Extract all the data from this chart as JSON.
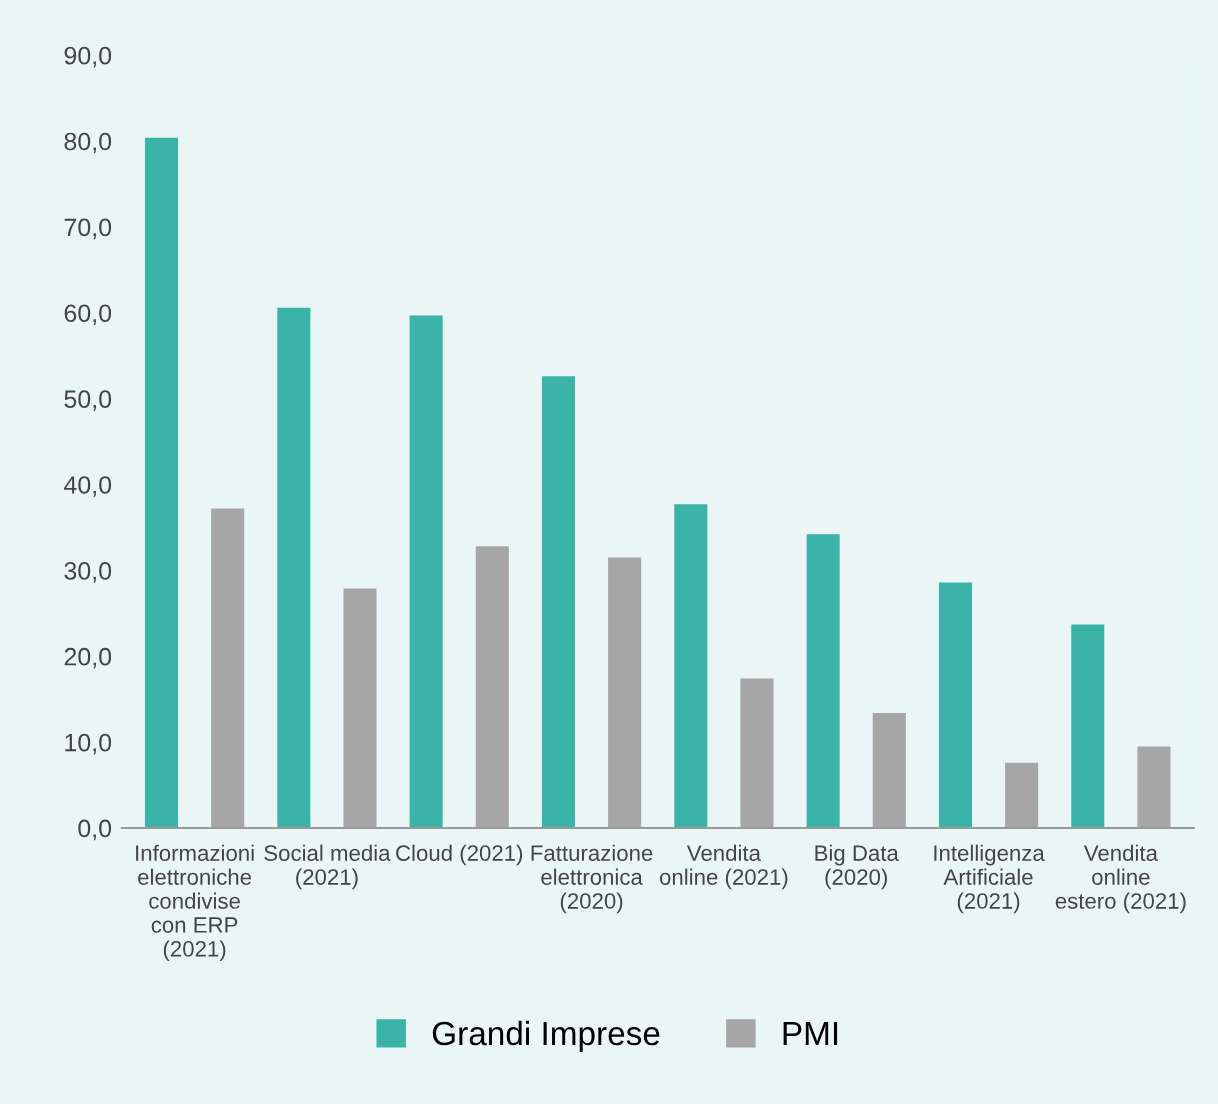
{
  "chart_data": {
    "type": "bar",
    "categories": [
      "Informazioni\nelettroniche\ncondivise\ncon ERP\n(2021)",
      "Social media\n(2021)",
      "Cloud (2021)",
      "Fatturazione\nelettronica\n(2020)",
      "Vendita\nonline (2021)",
      "Big Data\n(2020)",
      "Intelligenza\nArtificiale\n(2021)",
      "Vendita\nonline\nestero (2021)"
    ],
    "series": [
      {
        "name": "Grandi Imprese",
        "color": "#3bb3a8",
        "values": [
          80.4,
          60.6,
          59.7,
          52.6,
          37.7,
          34.2,
          28.6,
          23.7
        ]
      },
      {
        "name": "PMI",
        "color": "#a6a6a6",
        "values": [
          37.2,
          27.9,
          32.8,
          31.5,
          17.4,
          13.4,
          7.6,
          9.5
        ]
      }
    ],
    "ylim": [
      0,
      90
    ],
    "yticks": [
      {
        "value": 0,
        "label": "0,0"
      },
      {
        "value": 10,
        "label": "10,0"
      },
      {
        "value": 20,
        "label": "20,0"
      },
      {
        "value": 30,
        "label": "30,0"
      },
      {
        "value": 40,
        "label": "40,0"
      },
      {
        "value": 50,
        "label": "50,0"
      },
      {
        "value": 60,
        "label": "60,0"
      },
      {
        "value": 70,
        "label": "70,0"
      },
      {
        "value": 80,
        "label": "80,0"
      },
      {
        "value": 90,
        "label": "90,0"
      }
    ],
    "grid": false,
    "legend": "bottom"
  }
}
